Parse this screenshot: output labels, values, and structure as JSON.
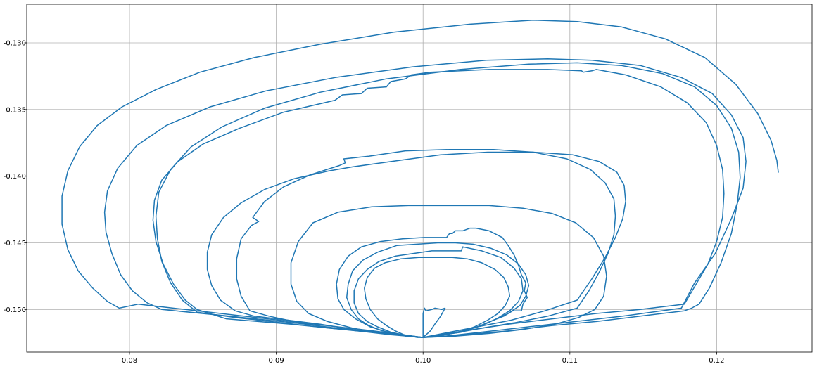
{
  "chart_data": {
    "type": "line",
    "title": "",
    "xlabel": "",
    "ylabel": "",
    "xlim": [
      0.073,
      0.1265
    ],
    "ylim": [
      -0.1532,
      -0.1271
    ],
    "grid": true,
    "legend": "none",
    "line_color": "#1f77b4",
    "x_ticks": [
      {
        "value": 0.08,
        "label": "0.08"
      },
      {
        "value": 0.09,
        "label": "0.09"
      },
      {
        "value": 0.1,
        "label": "0.10"
      },
      {
        "value": 0.11,
        "label": "0.11"
      },
      {
        "value": 0.12,
        "label": "0.12"
      }
    ],
    "y_ticks": [
      {
        "value": -0.13,
        "label": "-0.130"
      },
      {
        "value": -0.135,
        "label": "-0.135"
      },
      {
        "value": -0.14,
        "label": "-0.140"
      },
      {
        "value": -0.145,
        "label": "-0.145"
      },
      {
        "value": -0.15,
        "label": "-0.150"
      }
    ],
    "series": [
      {
        "x": [
          0.1,
          0.0966,
          0.0934,
          0.0902,
          0.087,
          0.0838,
          0.0806,
          0.0793,
          0.0785,
          0.0775,
          0.0765,
          0.0758,
          0.0754,
          0.0754,
          0.0758,
          0.0766,
          0.0778,
          0.0795,
          0.0818,
          0.0848,
          0.0885,
          0.093,
          0.098,
          0.1032,
          0.1075,
          0.1105,
          0.1135,
          0.1165,
          0.1192,
          0.1213,
          0.1228,
          0.1237,
          0.1241,
          0.1242
        ],
        "y": [
          -0.1521,
          -0.1516,
          -0.1512,
          -0.1508,
          -0.1504,
          -0.15,
          -0.1496,
          -0.1499,
          -0.1494,
          -0.1484,
          -0.1471,
          -0.1455,
          -0.1436,
          -0.1415,
          -0.1396,
          -0.1378,
          -0.1362,
          -0.1348,
          -0.1335,
          -0.1322,
          -0.1311,
          -0.1301,
          -0.1292,
          -0.1286,
          -0.1283,
          -0.1284,
          -0.1288,
          -0.1297,
          -0.1311,
          -0.1331,
          -0.1353,
          -0.1373,
          -0.1388,
          -0.1397
        ]
      },
      {
        "x": [
          0.1,
          0.0956,
          0.0912,
          0.0868,
          0.0822,
          0.0812,
          0.0802,
          0.0794,
          0.0788,
          0.0784,
          0.0783,
          0.0785,
          0.0792,
          0.0805,
          0.0825,
          0.0855,
          0.0893,
          0.094,
          0.0993,
          0.1043,
          0.1085,
          0.1115,
          0.1148,
          0.1176,
          0.1197,
          0.121,
          0.1218,
          0.122,
          0.1218,
          0.121,
          0.1199,
          0.1185,
          0.1176,
          0.1136,
          0.1096,
          0.1056,
          0.1016,
          0.1
        ],
        "y": [
          -0.1521,
          -0.1516,
          -0.151,
          -0.1505,
          -0.15,
          -0.1495,
          -0.1486,
          -0.1474,
          -0.1458,
          -0.1442,
          -0.1427,
          -0.1411,
          -0.1394,
          -0.1377,
          -0.1362,
          -0.1348,
          -0.1336,
          -0.1326,
          -0.1318,
          -0.1313,
          -0.1312,
          -0.1313,
          -0.1317,
          -0.1326,
          -0.1338,
          -0.1354,
          -0.1371,
          -0.1389,
          -0.1409,
          -0.1432,
          -0.1458,
          -0.148,
          -0.1499,
          -0.1505,
          -0.151,
          -0.1515,
          -0.152,
          -0.1521
        ]
      },
      {
        "x": [
          0.1,
          0.0955,
          0.091,
          0.0866,
          0.0846,
          0.0838,
          0.083,
          0.0823,
          0.0818,
          0.0816,
          0.0817,
          0.0822,
          0.0833,
          0.085,
          0.0875,
          0.0905,
          0.094,
          0.0945,
          0.0958,
          0.0962,
          0.0975,
          0.0978,
          0.0988,
          0.0992,
          0.1005,
          0.1045,
          0.1085,
          0.1108,
          0.1109,
          0.1115,
          0.1118,
          0.1138,
          0.1162,
          0.118,
          0.1193,
          0.12,
          0.1204,
          0.1205,
          0.1204,
          0.12,
          0.1194,
          0.1186,
          0.1178,
          0.1148,
          0.1118,
          0.1088,
          0.1058,
          0.1028,
          0.1
        ],
        "y": [
          -0.1521,
          -0.1516,
          -0.1511,
          -0.1507,
          -0.15,
          -0.1493,
          -0.1481,
          -0.1466,
          -0.1449,
          -0.1433,
          -0.1418,
          -0.1403,
          -0.1389,
          -0.1376,
          -0.1364,
          -0.1352,
          -0.1343,
          -0.1339,
          -0.1338,
          -0.1334,
          -0.1333,
          -0.1329,
          -0.1327,
          -0.1324,
          -0.1322,
          -0.132,
          -0.132,
          -0.1321,
          -0.1322,
          -0.1321,
          -0.132,
          -0.1324,
          -0.1333,
          -0.1345,
          -0.136,
          -0.1377,
          -0.1395,
          -0.1413,
          -0.1431,
          -0.1449,
          -0.1466,
          -0.1481,
          -0.1496,
          -0.15,
          -0.1503,
          -0.1507,
          -0.1511,
          -0.1516,
          -0.1521
        ]
      },
      {
        "x": [
          0.1,
          0.0968,
          0.0936,
          0.0904,
          0.0872,
          0.0846,
          0.0836,
          0.0828,
          0.0822,
          0.0819,
          0.0818,
          0.082,
          0.0828,
          0.0842,
          0.0863,
          0.0892,
          0.093,
          0.0975,
          0.1025,
          0.1072,
          0.1105,
          0.1135,
          0.1163,
          0.1185,
          0.12,
          0.121,
          0.1215,
          0.1216,
          0.1214,
          0.121,
          0.1203,
          0.1195,
          0.1188,
          0.1183,
          0.1178,
          0.1148,
          0.1118,
          0.1088,
          0.1058,
          0.1028,
          0.1
        ],
        "y": [
          -0.1521,
          -0.1517,
          -0.1514,
          -0.151,
          -0.1506,
          -0.1502,
          -0.1493,
          -0.148,
          -0.1464,
          -0.1447,
          -0.143,
          -0.1412,
          -0.1395,
          -0.1378,
          -0.1363,
          -0.1349,
          -0.1337,
          -0.1327,
          -0.132,
          -0.1316,
          -0.1315,
          -0.1317,
          -0.1323,
          -0.1333,
          -0.1347,
          -0.1364,
          -0.1382,
          -0.1401,
          -0.1421,
          -0.1443,
          -0.1465,
          -0.1484,
          -0.1496,
          -0.1499,
          -0.1501,
          -0.1505,
          -0.1509,
          -0.1512,
          -0.1516,
          -0.1519,
          -0.1521
        ]
      },
      {
        "x": [
          0.1,
          0.0975,
          0.0952,
          0.093,
          0.0908,
          0.0885,
          0.0872,
          0.0862,
          0.0856,
          0.0853,
          0.0853,
          0.0856,
          0.0864,
          0.0876,
          0.0892,
          0.0912,
          0.0936,
          0.0952,
          0.0965,
          0.0985,
          0.1012,
          0.1044,
          0.1075,
          0.1102,
          0.112,
          0.1132,
          0.1137,
          0.1138,
          0.1136,
          0.1131,
          0.1124,
          0.1115,
          0.1105,
          0.1083,
          0.106,
          0.1037,
          0.1018,
          0.1
        ],
        "y": [
          -0.1521,
          -0.1518,
          -0.1515,
          -0.1511,
          -0.1508,
          -0.1505,
          -0.1501,
          -0.1493,
          -0.1482,
          -0.147,
          -0.1457,
          -0.1444,
          -0.1431,
          -0.142,
          -0.141,
          -0.1402,
          -0.1396,
          -0.1393,
          -0.1391,
          -0.1388,
          -0.1384,
          -0.1382,
          -0.1382,
          -0.1384,
          -0.1389,
          -0.1397,
          -0.1407,
          -0.1419,
          -0.1432,
          -0.1446,
          -0.1461,
          -0.1477,
          -0.1493,
          -0.1501,
          -0.1508,
          -0.1513,
          -0.1517,
          -0.1521
        ]
      },
      {
        "x": [
          0.1,
          0.0978,
          0.0955,
          0.0932,
          0.0912,
          0.0895,
          0.0882,
          0.0876,
          0.0873,
          0.0873,
          0.0876,
          0.0883,
          0.0888,
          0.0884,
          0.0892,
          0.0905,
          0.0923,
          0.0943,
          0.0947,
          0.0946,
          0.0963,
          0.0988,
          0.1018,
          0.1048,
          0.1075,
          0.1098,
          0.1114,
          0.1124,
          0.113,
          0.1131,
          0.113,
          0.1126,
          0.112,
          0.1113,
          0.1105,
          0.1085,
          0.1062,
          0.104,
          0.102,
          0.1
        ],
        "y": [
          -0.1521,
          -0.1519,
          -0.1516,
          -0.1513,
          -0.1509,
          -0.1505,
          -0.1501,
          -0.149,
          -0.1477,
          -0.1462,
          -0.1447,
          -0.1437,
          -0.1434,
          -0.1431,
          -0.1419,
          -0.1408,
          -0.1399,
          -0.1392,
          -0.139,
          -0.1387,
          -0.1385,
          -0.1381,
          -0.138,
          -0.138,
          -0.1382,
          -0.1387,
          -0.1395,
          -0.1405,
          -0.1417,
          -0.143,
          -0.1444,
          -0.1458,
          -0.1472,
          -0.1486,
          -0.1499,
          -0.1505,
          -0.151,
          -0.1514,
          -0.1518,
          -0.1521
        ]
      },
      {
        "x": [
          0.1,
          0.0985,
          0.0968,
          0.0952,
          0.0935,
          0.0922,
          0.0914,
          0.091,
          0.091,
          0.0915,
          0.0925,
          0.0942,
          0.0965,
          0.099,
          0.1018,
          0.1045,
          0.1068,
          0.1088,
          0.1104,
          0.1116,
          0.1123,
          0.1125,
          0.1123,
          0.1117,
          0.1106,
          0.109,
          0.1068,
          0.1045,
          0.1022,
          0.1
        ],
        "y": [
          -0.1521,
          -0.1519,
          -0.1517,
          -0.1514,
          -0.1509,
          -0.1503,
          -0.1494,
          -0.1481,
          -0.1465,
          -0.1449,
          -0.1435,
          -0.1427,
          -0.1423,
          -0.1422,
          -0.1422,
          -0.1422,
          -0.1424,
          -0.1428,
          -0.1435,
          -0.1446,
          -0.146,
          -0.1475,
          -0.149,
          -0.15,
          -0.1506,
          -0.1511,
          -0.1515,
          -0.1518,
          -0.152,
          -0.1521
        ]
      },
      {
        "x": [
          0.1,
          0.0988,
          0.0976,
          0.0964,
          0.0954,
          0.0946,
          0.0942,
          0.0941,
          0.0943,
          0.0949,
          0.0958,
          0.0971,
          0.0986,
          0.1001,
          0.1016,
          0.1018,
          0.102,
          0.1022,
          0.1027,
          0.1032,
          0.1036,
          0.1045,
          0.1054,
          0.1058,
          0.1062,
          0.1065,
          0.1067,
          0.107,
          0.1069,
          0.1071,
          0.1068,
          0.1067,
          0.1061,
          0.1055,
          0.1048,
          0.104,
          0.103,
          0.102,
          0.101,
          0.1
        ],
        "y": [
          -0.1521,
          -0.152,
          -0.1517,
          -0.1513,
          -0.1507,
          -0.15,
          -0.1492,
          -0.1481,
          -0.147,
          -0.146,
          -0.1453,
          -0.1449,
          -0.1447,
          -0.1446,
          -0.1446,
          -0.1443,
          -0.1443,
          -0.1441,
          -0.1441,
          -0.1439,
          -0.1439,
          -0.1441,
          -0.1446,
          -0.1452,
          -0.1459,
          -0.1467,
          -0.1474,
          -0.148,
          -0.1486,
          -0.1491,
          -0.1496,
          -0.1501,
          -0.1501,
          -0.1505,
          -0.1508,
          -0.1512,
          -0.1515,
          -0.1518,
          -0.152,
          -0.1521
        ]
      },
      {
        "x": [
          0.1,
          0.0991,
          0.0982,
          0.0972,
          0.0963,
          0.0956,
          0.0951,
          0.0948,
          0.0949,
          0.0952,
          0.0959,
          0.0969,
          0.0982,
          0.0996,
          0.101,
          0.1022,
          0.1034,
          0.1046,
          0.1057,
          0.1065,
          0.107,
          0.1072,
          0.107,
          0.1066,
          0.1058,
          0.1048,
          0.1037,
          0.1026,
          0.1013,
          0.1
        ],
        "y": [
          -0.1521,
          -0.152,
          -0.1518,
          -0.1516,
          -0.1512,
          -0.1507,
          -0.15,
          -0.1491,
          -0.1481,
          -0.1471,
          -0.1463,
          -0.1457,
          -0.1452,
          -0.1451,
          -0.145,
          -0.145,
          -0.1451,
          -0.1454,
          -0.1459,
          -0.1466,
          -0.1474,
          -0.1482,
          -0.149,
          -0.1497,
          -0.1503,
          -0.1508,
          -0.1513,
          -0.1517,
          -0.1519,
          -0.1521
        ]
      },
      {
        "x": [
          0.1,
          0.0993,
          0.0986,
          0.0978,
          0.0969,
          0.0962,
          0.0956,
          0.0953,
          0.0953,
          0.0956,
          0.0962,
          0.097,
          0.0981,
          0.0993,
          0.1006,
          0.1019,
          0.1026,
          0.1027,
          0.104,
          0.1053,
          0.1062,
          0.1067,
          0.1068,
          0.1065,
          0.1059,
          0.105,
          0.104,
          0.1028,
          0.1014,
          0.1
        ],
        "y": [
          -0.1521,
          -0.152,
          -0.1519,
          -0.1517,
          -0.1513,
          -0.1509,
          -0.1503,
          -0.1495,
          -0.1486,
          -0.1477,
          -0.147,
          -0.1464,
          -0.146,
          -0.1458,
          -0.1456,
          -0.1456,
          -0.1456,
          -0.1453,
          -0.1456,
          -0.1461,
          -0.1469,
          -0.1477,
          -0.1486,
          -0.1494,
          -0.1501,
          -0.1507,
          -0.1512,
          -0.1516,
          -0.1519,
          -0.1521
        ]
      },
      {
        "x": [
          0.1,
          0.0996,
          0.0992,
          0.0987,
          0.0981,
          0.0975,
          0.0969,
          0.0964,
          0.0961,
          0.096,
          0.0962,
          0.0967,
          0.0974,
          0.0985,
          0.0997,
          0.1009,
          0.102,
          0.103,
          0.104,
          0.1049,
          0.1055,
          0.1058,
          0.1059,
          0.1056,
          0.1051,
          0.1044,
          0.1035,
          0.1025,
          0.1013,
          0.1
        ],
        "y": [
          -0.1521,
          -0.1521,
          -0.152,
          -0.1519,
          -0.1516,
          -0.1512,
          -0.1507,
          -0.15,
          -0.1492,
          -0.1484,
          -0.1476,
          -0.1469,
          -0.1465,
          -0.1462,
          -0.1461,
          -0.1461,
          -0.1461,
          -0.1462,
          -0.1465,
          -0.147,
          -0.1476,
          -0.1483,
          -0.149,
          -0.1497,
          -0.1503,
          -0.1508,
          -0.1513,
          -0.1517,
          -0.1519,
          -0.1521
        ]
      },
      {
        "x": [
          0.1,
          0.1,
          0.1001,
          0.1002,
          0.1006,
          0.1008,
          0.1013,
          0.1012,
          0.1015,
          0.1012,
          0.1008,
          0.1005,
          0.1003,
          0.1001,
          0.1
        ],
        "y": [
          -0.1521,
          -0.1503,
          -0.1499,
          -0.1501,
          -0.15,
          -0.1499,
          -0.15,
          -0.15,
          -0.1499,
          -0.1505,
          -0.1511,
          -0.1516,
          -0.1518,
          -0.152,
          -0.1521
        ]
      }
    ]
  }
}
